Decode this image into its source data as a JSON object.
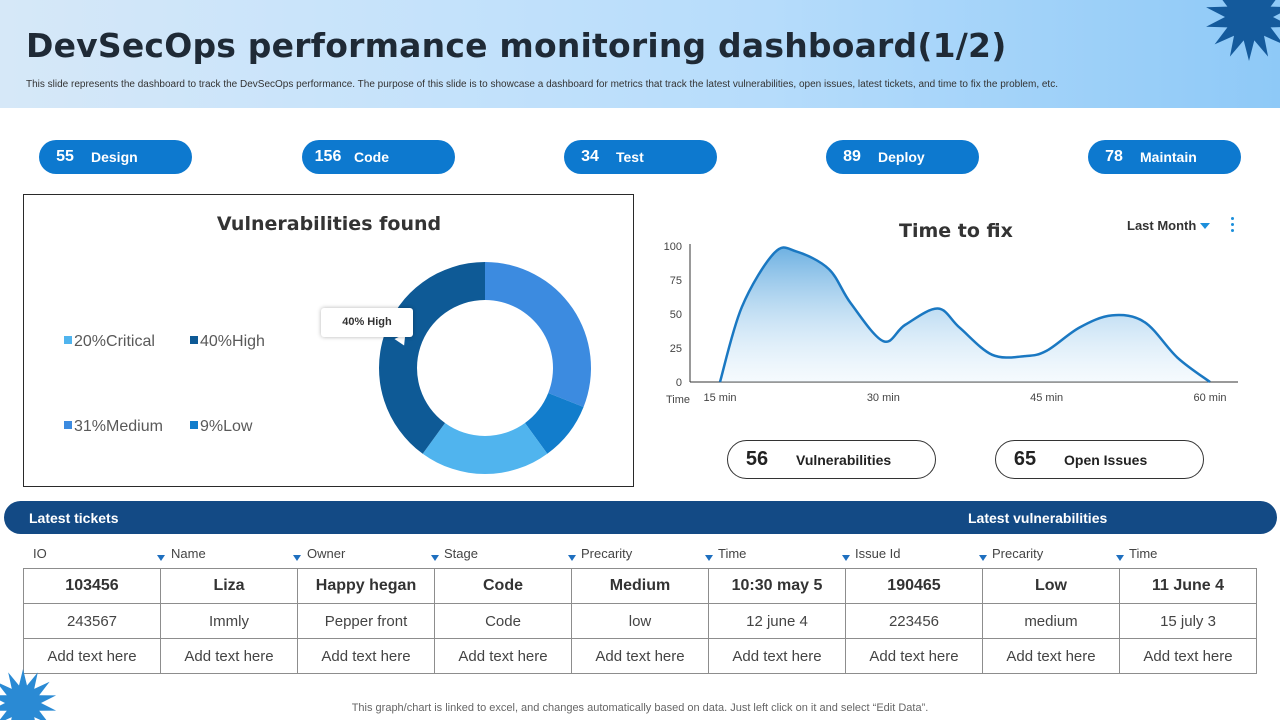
{
  "header": {
    "title": "DevSecOps performance monitoring dashboard(1/2)",
    "subtitle": "This slide represents the dashboard to track the DevSecOps performance. The purpose of this slide is to showcase a dashboard for metrics that track the latest vulnerabilities, open issues, latest tickets, and time to fix the problem, etc."
  },
  "stages": [
    {
      "count": "55",
      "label": "Design"
    },
    {
      "count": "156",
      "label": "Code"
    },
    {
      "count": "34",
      "label": "Test"
    },
    {
      "count": "89",
      "label": "Deploy"
    },
    {
      "count": "78",
      "label": "Maintain"
    }
  ],
  "vulnerabilities": {
    "title": "Vulnerabilities found",
    "callout": "40% High",
    "legend": [
      "20%Critical",
      "40%High",
      "31%Medium",
      "9%Low"
    ]
  },
  "time_to_fix": {
    "title": "Time to fix",
    "period": "Last Month"
  },
  "metrics": [
    {
      "count": "56",
      "label": "Vulnerabilities"
    },
    {
      "count": "65",
      "label": "Open Issues"
    }
  ],
  "section_bar": {
    "left_label": "Latest tickets",
    "right_label": "Latest vulnerabilities"
  },
  "table": {
    "columns": [
      "IO",
      "Name",
      "Owner",
      "Stage",
      "Precarity",
      "Time",
      "Issue Id",
      "Precarity",
      "Time"
    ],
    "rows": [
      [
        "103456",
        "Liza",
        "Happy hegan",
        "Code",
        "Medium",
        "10:30 may 5",
        "190465",
        "Low",
        "11 June 4"
      ],
      [
        "243567",
        "Immly",
        "Pepper front",
        "Code",
        "low",
        "12 june 4",
        "223456",
        "medium",
        "15 july 3"
      ],
      [
        "Add text here",
        "Add text here",
        "Add text here",
        "Add text here",
        "Add text here",
        "Add text here",
        "Add text here",
        "Add text here",
        "Add text here"
      ]
    ]
  },
  "footer": {
    "note": "This graph/chart is linked to excel, and changes automatically based on data. Just left click on it and select “Edit Data”."
  },
  "chart_data": [
    {
      "type": "pie",
      "title": "Vulnerabilities found",
      "categories": [
        "Critical",
        "High",
        "Medium",
        "Low"
      ],
      "values": [
        20,
        40,
        31,
        9
      ],
      "colors": [
        "#50b4ee",
        "#0e5a96",
        "#3c8be0",
        "#127dcc"
      ],
      "donut": true
    },
    {
      "type": "area",
      "title": "Time to fix",
      "xlabel": "Time",
      "ylabel": "",
      "x_ticks": [
        "15 min",
        "30 min",
        "45 min",
        "60 min"
      ],
      "y_ticks": [
        0,
        25,
        50,
        75,
        100
      ],
      "ylim": [
        0,
        100
      ],
      "xlim": [
        15,
        60
      ],
      "x": [
        15,
        17,
        20,
        22,
        25,
        27,
        30,
        32,
        35,
        37,
        40,
        43,
        45,
        48,
        51,
        54,
        57,
        60
      ],
      "values": [
        0,
        55,
        95,
        96,
        83,
        58,
        30,
        42,
        54,
        40,
        20,
        19,
        23,
        40,
        49,
        44,
        18,
        0
      ]
    }
  ]
}
